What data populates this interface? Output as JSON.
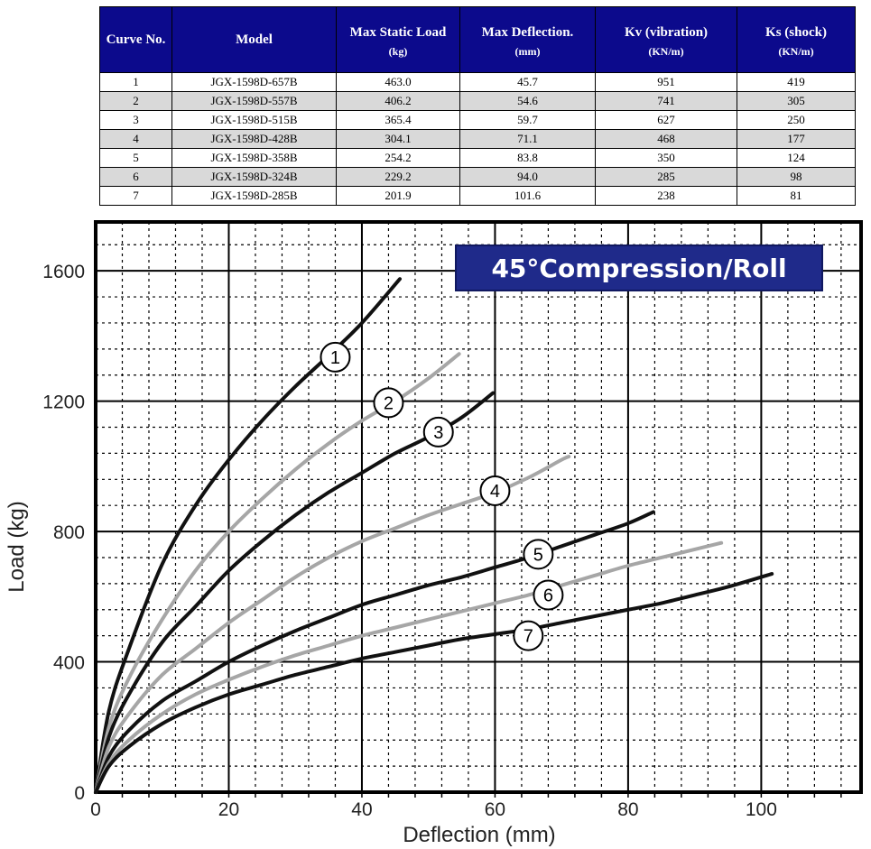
{
  "table": {
    "headers": [
      {
        "label": "Curve No.",
        "unit": ""
      },
      {
        "label": "Model",
        "unit": ""
      },
      {
        "label": "Max Static Load",
        "unit": "(kg)"
      },
      {
        "label": "Max Deflection.",
        "unit": "(mm)"
      },
      {
        "label": "Kv (vibration)",
        "unit": "(KN/m)"
      },
      {
        "label": "Ks (shock)",
        "unit": "(KN/m)"
      }
    ],
    "rows": [
      [
        "1",
        "JGX-1598D-657B",
        "463.0",
        "45.7",
        "951",
        "419"
      ],
      [
        "2",
        "JGX-1598D-557B",
        "406.2",
        "54.6",
        "741",
        "305"
      ],
      [
        "3",
        "JGX-1598D-515B",
        "365.4",
        "59.7",
        "627",
        "250"
      ],
      [
        "4",
        "JGX-1598D-428B",
        "304.1",
        "71.1",
        "468",
        "177"
      ],
      [
        "5",
        "JGX-1598D-358B",
        "254.2",
        "83.8",
        "350",
        "124"
      ],
      [
        "6",
        "JGX-1598D-324B",
        "229.2",
        "94.0",
        "285",
        "98"
      ],
      [
        "7",
        "JGX-1598D-285B",
        "201.9",
        "101.6",
        "238",
        "81"
      ]
    ]
  },
  "chart_data": {
    "type": "line",
    "title": "45°Compression/Roll",
    "xlabel": "Deflection (mm)",
    "ylabel": "Load (kg)",
    "xlim": [
      0,
      115
    ],
    "ylim": [
      0,
      1750
    ],
    "xticks": [
      0,
      20,
      40,
      60,
      80,
      100
    ],
    "yticks": [
      0,
      400,
      800,
      1200,
      1600
    ],
    "grid": true,
    "colors": {
      "title_bg": "#1f2a8a",
      "title_text": "#ffffff",
      "dark_curve": "#111111",
      "light_curve": "#a6a6a6",
      "grid": "#000000"
    },
    "series": [
      {
        "name": "1",
        "color": "dark",
        "label_at": [
          36,
          1335
        ],
        "points": [
          [
            0,
            0
          ],
          [
            2,
            250
          ],
          [
            5,
            440
          ],
          [
            10,
            700
          ],
          [
            15,
            880
          ],
          [
            20,
            1020
          ],
          [
            25,
            1140
          ],
          [
            30,
            1245
          ],
          [
            35,
            1340
          ],
          [
            40,
            1440
          ],
          [
            45.7,
            1575
          ]
        ]
      },
      {
        "name": "2",
        "color": "light",
        "label_at": [
          44,
          1195
        ],
        "points": [
          [
            0,
            0
          ],
          [
            2,
            200
          ],
          [
            5,
            350
          ],
          [
            10,
            530
          ],
          [
            15,
            680
          ],
          [
            20,
            800
          ],
          [
            25,
            900
          ],
          [
            30,
            990
          ],
          [
            35,
            1070
          ],
          [
            40,
            1140
          ],
          [
            45,
            1200
          ],
          [
            50,
            1270
          ],
          [
            54.6,
            1345
          ]
        ]
      },
      {
        "name": "3",
        "color": "dark",
        "label_at": [
          51.5,
          1105
        ],
        "points": [
          [
            0,
            0
          ],
          [
            2,
            170
          ],
          [
            5,
            300
          ],
          [
            10,
            460
          ],
          [
            15,
            570
          ],
          [
            20,
            680
          ],
          [
            25,
            770
          ],
          [
            30,
            850
          ],
          [
            35,
            920
          ],
          [
            40,
            980
          ],
          [
            45,
            1040
          ],
          [
            50,
            1090
          ],
          [
            55,
            1150
          ],
          [
            59.7,
            1225
          ]
        ]
      },
      {
        "name": "4",
        "color": "light",
        "label_at": [
          60,
          925
        ],
        "points": [
          [
            0,
            0
          ],
          [
            2,
            140
          ],
          [
            5,
            240
          ],
          [
            10,
            360
          ],
          [
            15,
            440
          ],
          [
            20,
            520
          ],
          [
            25,
            590
          ],
          [
            30,
            660
          ],
          [
            35,
            720
          ],
          [
            40,
            770
          ],
          [
            45,
            810
          ],
          [
            50,
            850
          ],
          [
            55,
            885
          ],
          [
            60,
            920
          ],
          [
            65,
            965
          ],
          [
            70,
            1020
          ],
          [
            71.1,
            1030
          ]
        ]
      },
      {
        "name": "5",
        "color": "dark",
        "label_at": [
          66.5,
          730
        ],
        "points": [
          [
            0,
            0
          ],
          [
            2,
            110
          ],
          [
            5,
            190
          ],
          [
            10,
            280
          ],
          [
            15,
            340
          ],
          [
            20,
            400
          ],
          [
            25,
            450
          ],
          [
            30,
            495
          ],
          [
            35,
            535
          ],
          [
            40,
            575
          ],
          [
            45,
            605
          ],
          [
            50,
            635
          ],
          [
            55,
            660
          ],
          [
            60,
            690
          ],
          [
            65,
            720
          ],
          [
            70,
            755
          ],
          [
            75,
            790
          ],
          [
            80,
            825
          ],
          [
            83.8,
            860
          ]
        ]
      },
      {
        "name": "6",
        "color": "light",
        "label_at": [
          68,
          605
        ],
        "points": [
          [
            0,
            0
          ],
          [
            2,
            90
          ],
          [
            5,
            160
          ],
          [
            10,
            240
          ],
          [
            15,
            300
          ],
          [
            20,
            345
          ],
          [
            25,
            385
          ],
          [
            30,
            420
          ],
          [
            35,
            450
          ],
          [
            40,
            480
          ],
          [
            45,
            505
          ],
          [
            50,
            530
          ],
          [
            55,
            555
          ],
          [
            60,
            580
          ],
          [
            65,
            605
          ],
          [
            70,
            635
          ],
          [
            75,
            665
          ],
          [
            80,
            695
          ],
          [
            85,
            720
          ],
          [
            90,
            745
          ],
          [
            94,
            765
          ]
        ]
      },
      {
        "name": "7",
        "color": "dark",
        "label_at": [
          65,
          480
        ],
        "points": [
          [
            0,
            0
          ],
          [
            2,
            80
          ],
          [
            5,
            140
          ],
          [
            10,
            210
          ],
          [
            15,
            260
          ],
          [
            20,
            300
          ],
          [
            25,
            330
          ],
          [
            30,
            360
          ],
          [
            35,
            385
          ],
          [
            40,
            410
          ],
          [
            45,
            430
          ],
          [
            50,
            450
          ],
          [
            55,
            470
          ],
          [
            60,
            485
          ],
          [
            65,
            500
          ],
          [
            70,
            520
          ],
          [
            75,
            540
          ],
          [
            80,
            560
          ],
          [
            85,
            580
          ],
          [
            90,
            605
          ],
          [
            95,
            630
          ],
          [
            101.6,
            670
          ]
        ]
      }
    ]
  }
}
